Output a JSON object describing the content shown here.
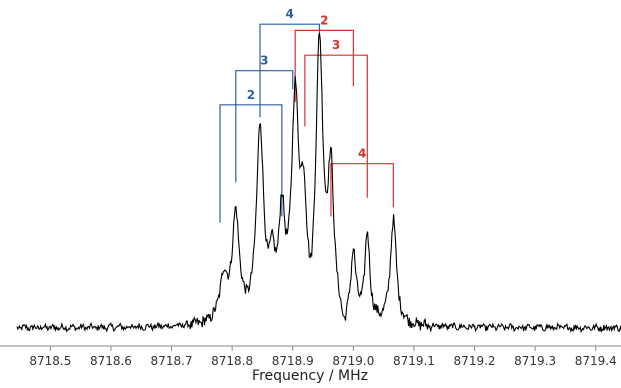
{
  "chart_data": {
    "type": "line",
    "title": "",
    "xlabel": "Frequency / MHz",
    "ylabel": "",
    "xlim": [
      8718.44,
      8719.45
    ],
    "ylim": [
      -0.08,
      1.0
    ],
    "grid": false,
    "x_ticks": [
      "8718.5",
      "8718.6",
      "8718.7",
      "8718.8",
      "8718.9",
      "8719.0",
      "8719.1",
      "8719.2",
      "8719.3",
      "8719.4"
    ],
    "x_tick_values": [
      8718.5,
      8718.6,
      8718.7,
      8718.8,
      8718.9,
      8719.0,
      8719.1,
      8719.2,
      8719.3,
      8719.4
    ],
    "series": [
      {
        "color": "#000000",
        "peaks": [
          {
            "x": 8718.786,
            "amp": 0.14,
            "w": 0.008
          },
          {
            "x": 8718.806,
            "amp": 0.34,
            "w": 0.007
          },
          {
            "x": 8718.846,
            "amp": 0.62,
            "w": 0.007
          },
          {
            "x": 8718.866,
            "amp": 0.15,
            "w": 0.006
          },
          {
            "x": 8718.882,
            "amp": 0.31,
            "w": 0.006
          },
          {
            "x": 8718.904,
            "amp": 0.69,
            "w": 0.007
          },
          {
            "x": 8718.918,
            "amp": 0.32,
            "w": 0.006
          },
          {
            "x": 8718.944,
            "amp": 0.88,
            "w": 0.007
          },
          {
            "x": 8718.963,
            "amp": 0.45,
            "w": 0.006
          },
          {
            "x": 8719.0,
            "amp": 0.22,
            "w": 0.005
          },
          {
            "x": 8719.023,
            "amp": 0.28,
            "w": 0.005
          },
          {
            "x": 8719.066,
            "amp": 0.34,
            "w": 0.006
          }
        ],
        "dips": [
          {
            "x": 8718.93,
            "amp": -0.09,
            "w": 0.005
          },
          {
            "x": 8718.985,
            "amp": -0.06,
            "w": 0.006
          }
        ]
      }
    ],
    "annotations": [
      {
        "label": "2",
        "color": "#2e5f9e",
        "tickIndex": 0,
        "legs": [
          8718.78,
          8718.882
        ],
        "y_top": 0.72,
        "y_ends": [
          0.34,
          0.36
        ]
      },
      {
        "label": "3",
        "color": "#2e5f9e",
        "tickIndex": 1,
        "legs": [
          8718.806,
          8718.9
        ],
        "y_top": 0.83,
        "y_ends": [
          0.47,
          0.77
        ]
      },
      {
        "label": "4",
        "color": "#2e5f9e",
        "tickIndex": 2,
        "legs": [
          8718.846,
          8718.944
        ],
        "y_top": 0.98,
        "y_ends": [
          0.68,
          0.94
        ]
      },
      {
        "label": "2",
        "color": "#d9302f",
        "tickIndex": 3,
        "legs": [
          8718.904,
          8719.0
        ],
        "y_top": 0.96,
        "y_ends": [
          0.73,
          0.78
        ]
      },
      {
        "label": "3",
        "color": "#d9302f",
        "tickIndex": 4,
        "legs": [
          8718.92,
          8719.023
        ],
        "y_top": 0.88,
        "y_ends": [
          0.65,
          0.42
        ]
      },
      {
        "label": "4",
        "color": "#d9302f",
        "tickIndex": 5,
        "legs": [
          8718.963,
          8719.066
        ],
        "y_top": 0.53,
        "y_ends": [
          0.36,
          0.39
        ]
      }
    ]
  }
}
